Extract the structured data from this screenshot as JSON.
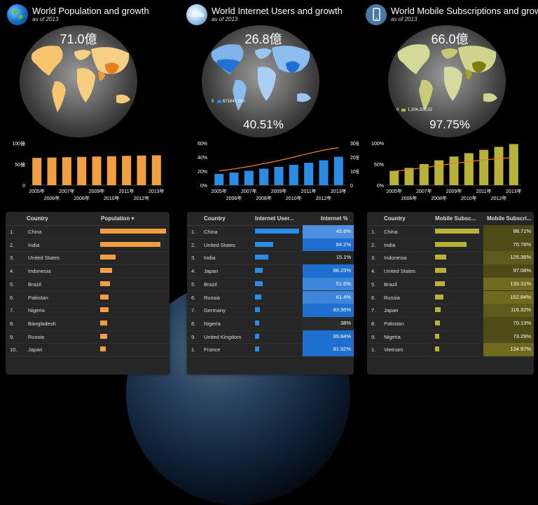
{
  "colors": {
    "orange": "#f0a040",
    "blue": "#2b8ce6",
    "olive": "#b7b23a",
    "trend": "#f07f2a",
    "dark_blue": "#1f72d6",
    "light_blue": "#7ab0e8"
  },
  "panels": [
    {
      "title": "World Population and growth",
      "subtitle": "as of 2013",
      "big_value": "71.0億",
      "percent": "",
      "legend_min": "",
      "legend_max": "",
      "icon": "earth-globe-icon"
    },
    {
      "title": "World Internet Users and growth",
      "subtitle": "as of 2013",
      "big_value": "26.8億",
      "percent": "40.51%",
      "legend_min": "0",
      "legend_max": "671647,040",
      "icon": "cloud-globe-icon"
    },
    {
      "title": "World Mobile Subscriptions and growth",
      "subtitle": "as of 2013",
      "big_value": "66.0億",
      "percent": "97.75%",
      "legend_min": "0",
      "legend_max": "1,204,100,52",
      "icon": "mobile-phone-icon"
    }
  ],
  "chart_data": [
    {
      "type": "bar",
      "categories": [
        "2005年",
        "2006年",
        "2007年",
        "2008年",
        "2009年",
        "2010年",
        "2011年",
        "2012年",
        "2013年"
      ],
      "values": [
        64.8,
        65.6,
        66.4,
        67.2,
        68.0,
        68.8,
        69.6,
        70.4,
        71.0
      ],
      "yticks": [
        "100億",
        "50億",
        "0"
      ],
      "ylim": [
        0,
        100
      ]
    },
    {
      "type": "bar+line",
      "categories": [
        "2005年",
        "2006年",
        "2007年",
        "2008年",
        "2009年",
        "2010年",
        "2011年",
        "2012年",
        "2013年"
      ],
      "series": [
        {
          "values": [
            16,
            18,
            20.5,
            23.5,
            26,
            29,
            32,
            35.5,
            40.5
          ]
        },
        {
          "values": [
            10.2,
            11.6,
            13.3,
            15.4,
            17.5,
            20,
            22.6,
            25,
            26.8
          ]
        }
      ],
      "yticks_left": [
        "60%",
        "40%",
        "20%",
        "0%"
      ],
      "yticks_right": [
        "30億",
        "20億",
        "10億",
        "0"
      ],
      "ylim_left": [
        0,
        60
      ],
      "ylim_right": [
        0,
        30
      ]
    },
    {
      "type": "bar+line",
      "categories": [
        "2005年",
        "2006年",
        "2007年",
        "2008年",
        "2009年",
        "2010年",
        "2011年",
        "2012年",
        "2013年"
      ],
      "series": [
        {
          "values": [
            34,
            41,
            50,
            59,
            68,
            76,
            84,
            91,
            97.75
          ]
        },
        {
          "values": [
            33,
            37,
            42,
            46,
            52,
            56,
            60,
            63,
            66
          ]
        }
      ],
      "yticks_left": [
        "100%",
        "50%",
        "0%"
      ],
      "ylim_left": [
        0,
        100
      ]
    }
  ],
  "tables": [
    {
      "headers": [
        "Country",
        "Population ▾"
      ],
      "rows": [
        {
          "n": "1.",
          "country": "China",
          "bar": 1.0
        },
        {
          "n": "2.",
          "country": "India",
          "bar": 0.92
        },
        {
          "n": "3.",
          "country": "United States",
          "bar": 0.23
        },
        {
          "n": "4.",
          "country": "Indonesia",
          "bar": 0.18
        },
        {
          "n": "5.",
          "country": "Brazil",
          "bar": 0.15
        },
        {
          "n": "6.",
          "country": "Pakistan",
          "bar": 0.13
        },
        {
          "n": "7.",
          "country": "Nigeria",
          "bar": 0.13
        },
        {
          "n": "8.",
          "country": "Bangladesh",
          "bar": 0.11
        },
        {
          "n": "9.",
          "country": "Russia",
          "bar": 0.11
        },
        {
          "n": "10.",
          "country": "Japan",
          "bar": 0.09
        }
      ]
    },
    {
      "headers": [
        "Country",
        "Internet User...",
        "Internet %"
      ],
      "rows": [
        {
          "n": "1.",
          "country": "China",
          "bar": 1.0,
          "pct": "45.8%",
          "pct_val": 45.8
        },
        {
          "n": "2.",
          "country": "United States",
          "bar": 0.42,
          "pct": "84.2%",
          "pct_val": 84.2
        },
        {
          "n": "3.",
          "country": "India",
          "bar": 0.3,
          "pct": "15.1%",
          "pct_val": 15.1
        },
        {
          "n": "4.",
          "country": "Japan",
          "bar": 0.17,
          "pct": "86.25%",
          "pct_val": 86.25
        },
        {
          "n": "5.",
          "country": "Brazil",
          "bar": 0.17,
          "pct": "51.6%",
          "pct_val": 51.6
        },
        {
          "n": "6.",
          "country": "Russia",
          "bar": 0.14,
          "pct": "61.4%",
          "pct_val": 61.4
        },
        {
          "n": "7.",
          "country": "Germany",
          "bar": 0.11,
          "pct": "83.96%",
          "pct_val": 83.96
        },
        {
          "n": "8.",
          "country": "Nigeria",
          "bar": 0.1,
          "pct": "38%",
          "pct_val": 38
        },
        {
          "n": "9.",
          "country": "United Kingdom",
          "bar": 0.09,
          "pct": "89.84%",
          "pct_val": 89.84
        },
        {
          "n": "1.",
          "country": "France",
          "bar": 0.08,
          "pct": "81.92%",
          "pct_val": 81.92
        }
      ]
    },
    {
      "headers": [
        "Country",
        "Mobile Subsc...",
        "Mobile Subscri..."
      ],
      "rows": [
        {
          "n": "1.",
          "country": "China",
          "bar": 1.0,
          "pct": "88.71%",
          "pct_val": 88.71
        },
        {
          "n": "2.",
          "country": "India",
          "bar": 0.72,
          "pct": "70.78%",
          "pct_val": 70.78
        },
        {
          "n": "3.",
          "country": "Indonesia",
          "bar": 0.26,
          "pct": "125.36%",
          "pct_val": 125.36
        },
        {
          "n": "4.",
          "country": "United States",
          "bar": 0.25,
          "pct": "97.08%",
          "pct_val": 97.08
        },
        {
          "n": "5.",
          "country": "Brazil",
          "bar": 0.22,
          "pct": "135.31%",
          "pct_val": 135.31
        },
        {
          "n": "6.",
          "country": "Russia",
          "bar": 0.19,
          "pct": "152.84%",
          "pct_val": 152.84
        },
        {
          "n": "7.",
          "country": "Japan",
          "bar": 0.12,
          "pct": "116.32%",
          "pct_val": 116.32
        },
        {
          "n": "8.",
          "country": "Pakistan",
          "bar": 0.11,
          "pct": "70.13%",
          "pct_val": 70.13
        },
        {
          "n": "9.",
          "country": "Nigeria",
          "bar": 0.1,
          "pct": "73.29%",
          "pct_val": 73.29
        },
        {
          "n": "1.",
          "country": "Vietnam",
          "bar": 0.1,
          "pct": "134.97%",
          "pct_val": 134.97
        }
      ]
    }
  ]
}
